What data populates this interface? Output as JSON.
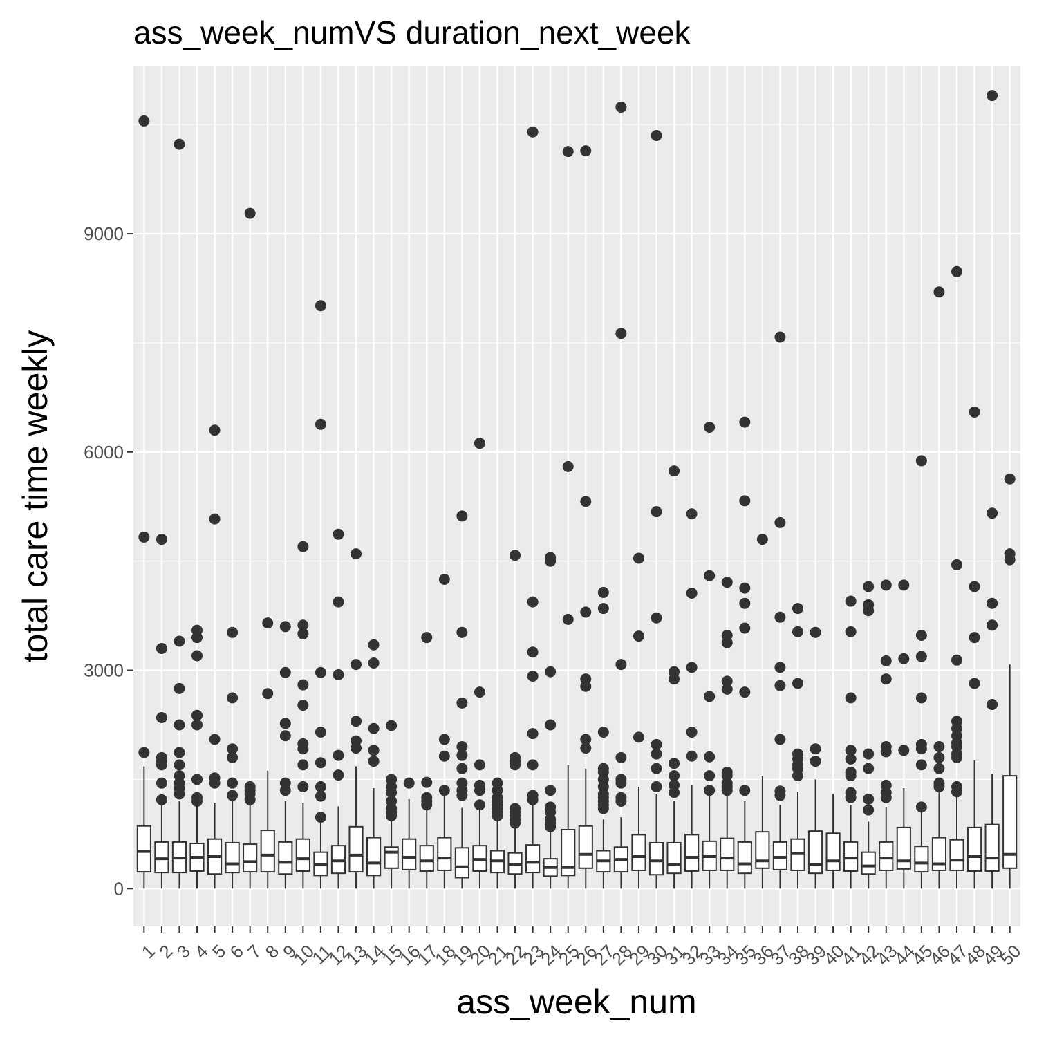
{
  "chart_data": {
    "type": "boxplot",
    "title": "ass_week_numVS duration_next_week",
    "xlabel": "ass_week_num",
    "ylabel": "total care time weekly",
    "ylim": [
      -520,
      11300
    ],
    "yticks": [
      0,
      3000,
      6000,
      9000
    ],
    "grid": true,
    "legend": "none",
    "colors": {
      "panel": "#ebebeb",
      "grid": "#ffffff",
      "box_fill": "#ffffff",
      "box_line": "#333333",
      "outlier": "#333333",
      "tick_text": "#4d4d4d"
    },
    "categories": [
      "1",
      "2",
      "3",
      "4",
      "5",
      "6",
      "7",
      "8",
      "9",
      "10",
      "11",
      "12",
      "13",
      "14",
      "15",
      "16",
      "17",
      "18",
      "19",
      "20",
      "21",
      "22",
      "23",
      "24",
      "25",
      "26",
      "27",
      "28",
      "29",
      "30",
      "31",
      "32",
      "33",
      "34",
      "35",
      "36",
      "37",
      "38",
      "39",
      "40",
      "41",
      "42",
      "43",
      "44",
      "45",
      "46",
      "47",
      "48",
      "49",
      "50"
    ],
    "boxes": [
      {
        "q1": 230,
        "median": 510,
        "q3": 860,
        "lower": 0,
        "upper": 1680,
        "outliers": [
          10550,
          4830,
          1870
        ]
      },
      {
        "q1": 220,
        "median": 410,
        "q3": 640,
        "lower": 0,
        "upper": 1150,
        "outliers": [
          4800,
          3300,
          2350,
          1800,
          1750,
          1700,
          1450,
          1220
        ]
      },
      {
        "q1": 220,
        "median": 420,
        "q3": 640,
        "lower": 0,
        "upper": 1200,
        "outliers": [
          10230,
          3400,
          2750,
          2250,
          1870,
          1700,
          1550,
          1450,
          1380,
          1300
        ]
      },
      {
        "q1": 240,
        "median": 430,
        "q3": 620,
        "lower": 0,
        "upper": 1150,
        "outliers": [
          3550,
          3450,
          3200,
          2380,
          2250,
          1500,
          1250,
          1200
        ]
      },
      {
        "q1": 200,
        "median": 440,
        "q3": 680,
        "lower": 0,
        "upper": 1180,
        "outliers": [
          6300,
          5080,
          2050,
          1520,
          1450
        ]
      },
      {
        "q1": 220,
        "median": 340,
        "q3": 630,
        "lower": 0,
        "upper": 1200,
        "outliers": [
          3520,
          2620,
          1920,
          1800,
          1450,
          1280
        ]
      },
      {
        "q1": 230,
        "median": 370,
        "q3": 610,
        "lower": 0,
        "upper": 1150,
        "outliers": [
          9280,
          1400,
          1350,
          1300,
          1220
        ]
      },
      {
        "q1": 230,
        "median": 460,
        "q3": 800,
        "lower": 0,
        "upper": 1620,
        "outliers": [
          3650,
          2680
        ]
      },
      {
        "q1": 200,
        "median": 360,
        "q3": 640,
        "lower": 0,
        "upper": 1200,
        "outliers": [
          3600,
          2970,
          2270,
          2100,
          1450,
          1350
        ]
      },
      {
        "q1": 240,
        "median": 410,
        "q3": 680,
        "lower": 0,
        "upper": 1180,
        "outliers": [
          4700,
          3620,
          3500,
          2800,
          2520,
          1990,
          1920,
          1700,
          1400
        ]
      },
      {
        "q1": 180,
        "median": 330,
        "q3": 500,
        "lower": 0,
        "upper": 950,
        "outliers": [
          8010,
          6380,
          2970,
          2150,
          1730,
          1400,
          1270,
          980
        ]
      },
      {
        "q1": 210,
        "median": 380,
        "q3": 590,
        "lower": 0,
        "upper": 1130,
        "outliers": [
          4870,
          3940,
          2940,
          1830,
          1560
        ]
      },
      {
        "q1": 230,
        "median": 460,
        "q3": 850,
        "lower": 0,
        "upper": 1680,
        "outliers": [
          4600,
          3080,
          2300,
          2030,
          1930
        ]
      },
      {
        "q1": 180,
        "median": 350,
        "q3": 700,
        "lower": 0,
        "upper": 1380,
        "outliers": [
          3350,
          3100,
          2200,
          1900,
          1750
        ]
      },
      {
        "q1": 280,
        "median": 500,
        "q3": 570,
        "lower": 0,
        "upper": 950,
        "outliers": [
          2240,
          1500,
          1400,
          1320,
          1200,
          1100,
          1050,
          1000
        ]
      },
      {
        "q1": 260,
        "median": 430,
        "q3": 680,
        "lower": 0,
        "upper": 1230,
        "outliers": [
          1450
        ]
      },
      {
        "q1": 240,
        "median": 380,
        "q3": 590,
        "lower": 0,
        "upper": 1130,
        "outliers": [
          3450,
          1460,
          1250,
          1200,
          1150
        ]
      },
      {
        "q1": 250,
        "median": 420,
        "q3": 700,
        "lower": 0,
        "upper": 1330,
        "outliers": [
          4250,
          2050,
          1820,
          1350
        ]
      },
      {
        "q1": 150,
        "median": 300,
        "q3": 560,
        "lower": 0,
        "upper": 1110,
        "outliers": [
          5120,
          3520,
          2550,
          1950,
          1830,
          1650,
          1450,
          1350,
          1280
        ]
      },
      {
        "q1": 240,
        "median": 400,
        "q3": 590,
        "lower": 0,
        "upper": 1120,
        "outliers": [
          6120,
          2700,
          1700,
          1420,
          1350,
          1150
        ]
      },
      {
        "q1": 220,
        "median": 380,
        "q3": 520,
        "lower": 0,
        "upper": 950,
        "outliers": [
          1450,
          1350,
          1250,
          1200,
          1150,
          1100,
          1050,
          1000
        ]
      },
      {
        "q1": 200,
        "median": 330,
        "q3": 490,
        "lower": 0,
        "upper": 890,
        "outliers": [
          4580,
          1800,
          1750,
          1700,
          1100,
          1050,
          1000,
          950,
          900
        ]
      },
      {
        "q1": 220,
        "median": 360,
        "q3": 600,
        "lower": 0,
        "upper": 1150,
        "outliers": [
          10400,
          3940,
          3250,
          2920,
          2130,
          1700,
          1280,
          1220
        ]
      },
      {
        "q1": 170,
        "median": 290,
        "q3": 410,
        "lower": 0,
        "upper": 780,
        "outliers": [
          4550,
          4500,
          2980,
          2250,
          1350,
          1120,
          1050,
          950,
          900,
          850
        ]
      },
      {
        "q1": 180,
        "median": 290,
        "q3": 810,
        "lower": 0,
        "upper": 1700,
        "outliers": [
          10130,
          5800,
          3700
        ]
      },
      {
        "q1": 280,
        "median": 470,
        "q3": 860,
        "lower": 0,
        "upper": 1650,
        "outliers": [
          10140,
          5320,
          3800,
          2880,
          2780,
          2050,
          1930
        ]
      },
      {
        "q1": 230,
        "median": 380,
        "q3": 520,
        "lower": 0,
        "upper": 950,
        "outliers": [
          4070,
          3850,
          2150,
          1650,
          1600,
          1500,
          1400,
          1300,
          1250,
          1200,
          1150,
          1100
        ]
      },
      {
        "q1": 230,
        "median": 400,
        "q3": 570,
        "lower": 0,
        "upper": 980,
        "outliers": [
          10740,
          7630,
          3080,
          1800,
          1500,
          1450,
          1250,
          1200
        ]
      },
      {
        "q1": 250,
        "median": 440,
        "q3": 740,
        "lower": 0,
        "upper": 1400,
        "outliers": [
          4540,
          3470,
          2080
        ]
      },
      {
        "q1": 190,
        "median": 380,
        "q3": 630,
        "lower": 0,
        "upper": 1300,
        "outliers": [
          10350,
          5180,
          3720,
          1980,
          1850,
          1650,
          1400
        ]
      },
      {
        "q1": 210,
        "median": 330,
        "q3": 630,
        "lower": 0,
        "upper": 1200,
        "outliers": [
          5740,
          2980,
          2880,
          1720,
          1550,
          1420,
          1320
        ]
      },
      {
        "q1": 240,
        "median": 430,
        "q3": 740,
        "lower": 0,
        "upper": 1420,
        "outliers": [
          5150,
          4060,
          3040,
          2150,
          1820
        ]
      },
      {
        "q1": 250,
        "median": 440,
        "q3": 650,
        "lower": 0,
        "upper": 1300,
        "outliers": [
          6340,
          4300,
          2640,
          1810,
          1550,
          1350
        ]
      },
      {
        "q1": 250,
        "median": 420,
        "q3": 690,
        "lower": 0,
        "upper": 1300,
        "outliers": [
          4210,
          3480,
          3380,
          2850,
          2740,
          1600,
          1550,
          1450,
          1400,
          1350
        ]
      },
      {
        "q1": 210,
        "median": 340,
        "q3": 640,
        "lower": 0,
        "upper": 1200,
        "outliers": [
          6410,
          5330,
          4130,
          3920,
          3580,
          2700,
          1350
        ]
      },
      {
        "q1": 280,
        "median": 380,
        "q3": 780,
        "lower": 0,
        "upper": 1550,
        "outliers": [
          4800
        ]
      },
      {
        "q1": 260,
        "median": 430,
        "q3": 640,
        "lower": 0,
        "upper": 1150,
        "outliers": [
          7580,
          5030,
          3730,
          3040,
          2790,
          2050,
          1340,
          1280
        ]
      },
      {
        "q1": 250,
        "median": 480,
        "q3": 680,
        "lower": 0,
        "upper": 1330,
        "outliers": [
          3850,
          3530,
          2820,
          1850,
          1780,
          1700,
          1650,
          1550
        ]
      },
      {
        "q1": 210,
        "median": 330,
        "q3": 790,
        "lower": 0,
        "upper": 1500,
        "outliers": [
          3520,
          1920,
          1750
        ]
      },
      {
        "q1": 250,
        "median": 380,
        "q3": 760,
        "lower": 0,
        "upper": 1300,
        "outliers": []
      },
      {
        "q1": 240,
        "median": 420,
        "q3": 640,
        "lower": 0,
        "upper": 1150,
        "outliers": [
          3950,
          3530,
          2620,
          1900,
          1780,
          1600,
          1550,
          1320,
          1250
        ]
      },
      {
        "q1": 200,
        "median": 310,
        "q3": 500,
        "lower": 0,
        "upper": 920,
        "outliers": [
          4150,
          3900,
          3820,
          1850,
          1650,
          1230,
          1080
        ]
      },
      {
        "q1": 250,
        "median": 420,
        "q3": 640,
        "lower": 0,
        "upper": 1120,
        "outliers": [
          4170,
          3130,
          2880,
          1950,
          1880,
          1420,
          1320,
          1250
        ]
      },
      {
        "q1": 270,
        "median": 380,
        "q3": 840,
        "lower": 0,
        "upper": 1380,
        "outliers": [
          4170,
          3160,
          1900
        ]
      },
      {
        "q1": 230,
        "median": 350,
        "q3": 580,
        "lower": 0,
        "upper": 1100,
        "outliers": [
          5880,
          3480,
          3190,
          2620,
          1980,
          1920,
          1700,
          1120
        ]
      },
      {
        "q1": 250,
        "median": 340,
        "q3": 700,
        "lower": 0,
        "upper": 1350,
        "outliers": [
          8200,
          1950,
          1800,
          1650,
          1450,
          1400
        ]
      },
      {
        "q1": 250,
        "median": 390,
        "q3": 670,
        "lower": 0,
        "upper": 1260,
        "outliers": [
          8480,
          4450,
          3140,
          2300,
          2200,
          2100,
          2000,
          1950,
          1850,
          1800,
          1400,
          1330
        ]
      },
      {
        "q1": 240,
        "median": 440,
        "q3": 840,
        "lower": 0,
        "upper": 1760,
        "outliers": [
          6550,
          4150,
          3450,
          2820
        ]
      },
      {
        "q1": 240,
        "median": 420,
        "q3": 880,
        "lower": 0,
        "upper": 1580,
        "outliers": [
          10900,
          5160,
          3920,
          3620,
          2530
        ]
      },
      {
        "q1": 280,
        "median": 470,
        "q3": 1550,
        "lower": 0,
        "upper": 3080,
        "outliers": [
          5630,
          4600,
          4520
        ]
      }
    ]
  }
}
